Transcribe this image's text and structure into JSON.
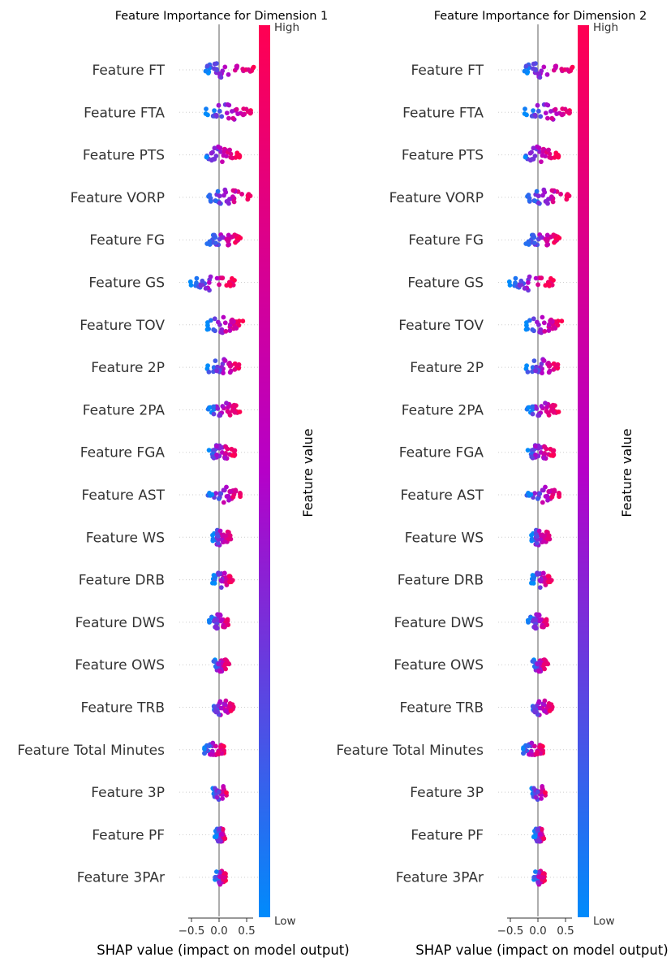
{
  "colorbar": {
    "label": "Feature value",
    "high_label": "High",
    "low_label": "Low",
    "color_low": "#008bfb",
    "color_mid": "#b600c8",
    "color_high": "#ff0052"
  },
  "chart_data": [
    {
      "type": "scatter",
      "title": "Feature Importance for Dimension 1",
      "xlabel": "SHAP value (impact on model output)",
      "xlim": [
        -0.7,
        0.7
      ],
      "xticks": [
        -0.5,
        0.0,
        0.5
      ],
      "xtick_labels": [
        "−0.5",
        "0.0",
        "0.5"
      ],
      "features": [
        "Feature FT",
        "Feature FTA",
        "Feature PTS",
        "Feature VORP",
        "Feature FG",
        "Feature GS",
        "Feature TOV",
        "Feature 2P",
        "Feature 2PA",
        "Feature FGA",
        "Feature AST",
        "Feature WS",
        "Feature DRB",
        "Feature DWS",
        "Feature OWS",
        "Feature TRB",
        "Feature Total Minutes",
        "Feature 3P",
        "Feature PF",
        "Feature 3PAr"
      ],
      "ranges": [
        [
          -0.28,
          0.65
        ],
        [
          -0.25,
          0.62
        ],
        [
          -0.3,
          0.38
        ],
        [
          -0.22,
          0.58
        ],
        [
          -0.22,
          0.4
        ],
        [
          -0.52,
          0.28
        ],
        [
          -0.28,
          0.45
        ],
        [
          -0.22,
          0.4
        ],
        [
          -0.2,
          0.38
        ],
        [
          -0.2,
          0.3
        ],
        [
          -0.2,
          0.42
        ],
        [
          -0.15,
          0.25
        ],
        [
          -0.12,
          0.25
        ],
        [
          -0.18,
          0.18
        ],
        [
          -0.12,
          0.18
        ],
        [
          -0.12,
          0.26
        ],
        [
          -0.3,
          0.1
        ],
        [
          -0.12,
          0.18
        ],
        [
          -0.08,
          0.12
        ],
        [
          -0.08,
          0.12
        ]
      ]
    },
    {
      "type": "scatter",
      "title": "Feature Importance for Dimension 2",
      "xlabel": "SHAP value (impact on model output)",
      "xlim": [
        -0.7,
        0.7
      ],
      "xticks": [
        -0.5,
        0.0,
        0.5
      ],
      "xtick_labels": [
        "−0.5",
        "0.0",
        "0.5"
      ],
      "features": [
        "Feature FT",
        "Feature FTA",
        "Feature PTS",
        "Feature VORP",
        "Feature FG",
        "Feature GS",
        "Feature TOV",
        "Feature 2P",
        "Feature 2PA",
        "Feature FGA",
        "Feature AST",
        "Feature WS",
        "Feature DRB",
        "Feature DWS",
        "Feature OWS",
        "Feature TRB",
        "Feature Total Minutes",
        "Feature 3P",
        "Feature PF",
        "Feature 3PAr"
      ],
      "ranges": [
        [
          -0.28,
          0.65
        ],
        [
          -0.25,
          0.62
        ],
        [
          -0.3,
          0.38
        ],
        [
          -0.22,
          0.58
        ],
        [
          -0.22,
          0.4
        ],
        [
          -0.52,
          0.28
        ],
        [
          -0.28,
          0.45
        ],
        [
          -0.22,
          0.4
        ],
        [
          -0.2,
          0.38
        ],
        [
          -0.2,
          0.3
        ],
        [
          -0.2,
          0.42
        ],
        [
          -0.15,
          0.25
        ],
        [
          -0.12,
          0.25
        ],
        [
          -0.18,
          0.18
        ],
        [
          -0.12,
          0.18
        ],
        [
          -0.12,
          0.26
        ],
        [
          -0.3,
          0.1
        ],
        [
          -0.12,
          0.18
        ],
        [
          -0.08,
          0.12
        ],
        [
          -0.08,
          0.12
        ]
      ]
    }
  ]
}
